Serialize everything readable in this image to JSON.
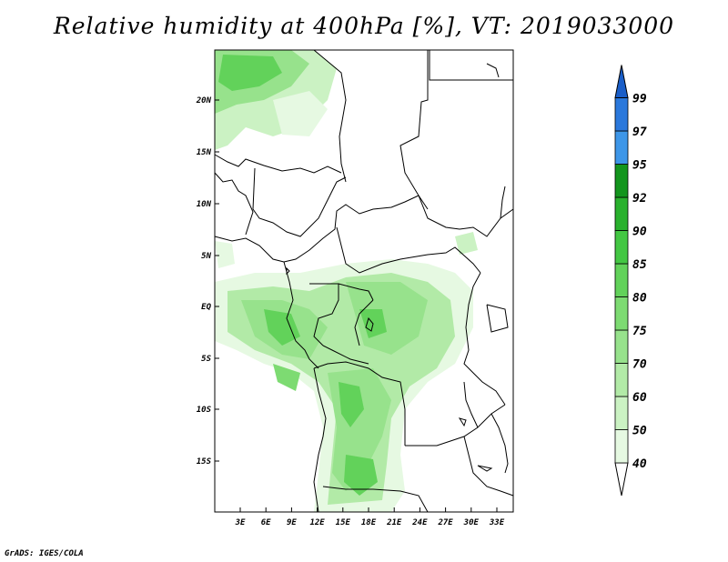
{
  "title": "Relative humidity at 400hPa [%], VT: 2019033000",
  "credit": "GrADS: IGES/COLA",
  "map": {
    "lat_labels": [
      "20N",
      "15N",
      "10N",
      "5N",
      "EQ",
      "5S",
      "10S",
      "15S"
    ],
    "lon_labels": [
      "3E",
      "6E",
      "9E",
      "12E",
      "15E",
      "18E",
      "21E",
      "24E",
      "27E",
      "30E",
      "33E"
    ]
  },
  "colorbar": {
    "levels": [
      "40",
      "50",
      "60",
      "70",
      "75",
      "80",
      "85",
      "90",
      "92",
      "95",
      "97",
      "99"
    ],
    "colors": [
      "#e6f9e2",
      "#cbf2c3",
      "#b2eaa7",
      "#97e28c",
      "#7ddb72",
      "#62d25a",
      "#43c743",
      "#29b12d",
      "#13951d",
      "#3d96e8",
      "#2a78dc",
      "#1a5ec8"
    ]
  }
}
